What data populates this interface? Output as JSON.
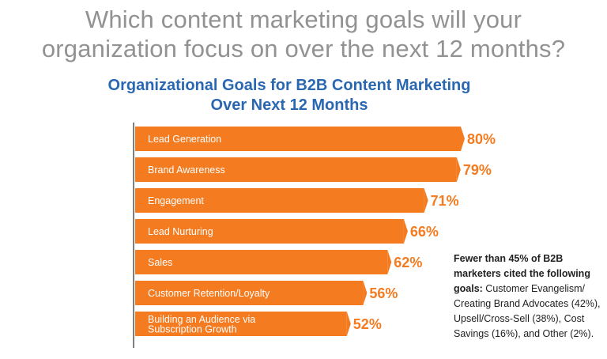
{
  "headline": {
    "line1": "Which content marketing goals will your",
    "line2": "organization focus on over the next 12 months?"
  },
  "chart_data": {
    "type": "bar",
    "orientation": "horizontal",
    "title_line1": "Organizational Goals for B2B Content Marketing",
    "title_line2": "Over Next 12 Months",
    "categories": [
      [
        "Lead Generation"
      ],
      [
        "Brand Awareness"
      ],
      [
        "Engagement"
      ],
      [
        "Lead Nurturing"
      ],
      [
        "Sales"
      ],
      [
        "Customer Retention/Loyalty"
      ],
      [
        "Building an Audience via",
        "Subscription Growth"
      ]
    ],
    "values": [
      80,
      79,
      71,
      66,
      62,
      56,
      52
    ],
    "value_labels": [
      "80%",
      "79%",
      "71%",
      "66%",
      "62%",
      "56%",
      "52%"
    ],
    "unit": "%",
    "xlim": [
      0,
      80
    ],
    "grid": false,
    "legend": "none",
    "colors": {
      "bar": "#f47b20",
      "bar_label_text": "#ffffff",
      "value_label": "#f47b20",
      "axis": "#555555"
    }
  },
  "note": {
    "bold": "Fewer than 45% of B2B marketers cited the following goals:",
    "text": " Customer Evangelism/ Creating Brand Advocates (42%), Upsell/Cross-Sell (38%), Cost Savings (16%), and Other (2%)."
  },
  "colors": {
    "headline": "#929292",
    "title": "#2a67b1",
    "note_text": "#1f1f1f"
  }
}
